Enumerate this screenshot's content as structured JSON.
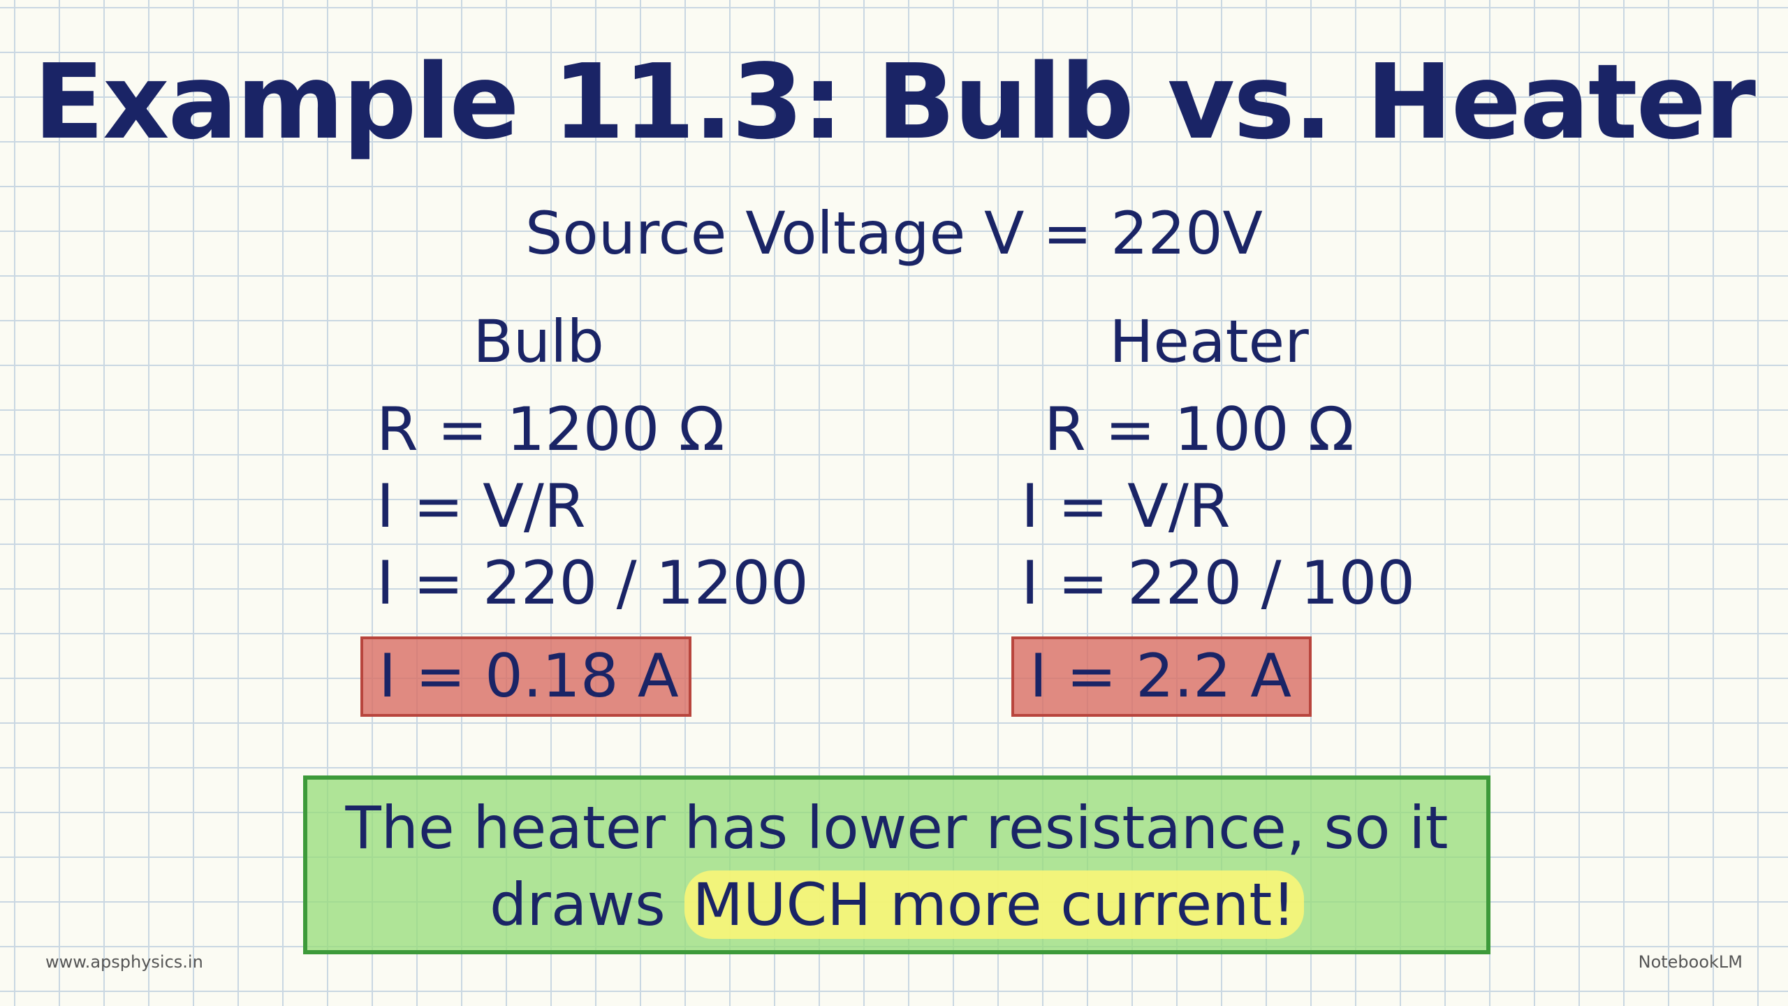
{
  "title": "Example 11.3: Bulb vs. Heater",
  "source_voltage": "Source Voltage  V = 220V",
  "columns": [
    {
      "heading": "Bulb",
      "lines": [
        "R = 1200 Ω",
        "I = V/R",
        "I = 220 / 1200"
      ],
      "result": "I = 0.18 A"
    },
    {
      "heading": "Heater",
      "lines": [
        "R = 100 Ω",
        "I = V/R",
        "I = 220 / 100"
      ],
      "result": "I = 2.2 A"
    }
  ],
  "conclusion": {
    "line1": "The heater has lower resistance, so it",
    "line2": {
      "text": "draws ",
      "highlight": "MUCH more current!"
    }
  },
  "footer": {
    "left": "www.apsphysics.in",
    "right": "NotebookLM"
  }
}
